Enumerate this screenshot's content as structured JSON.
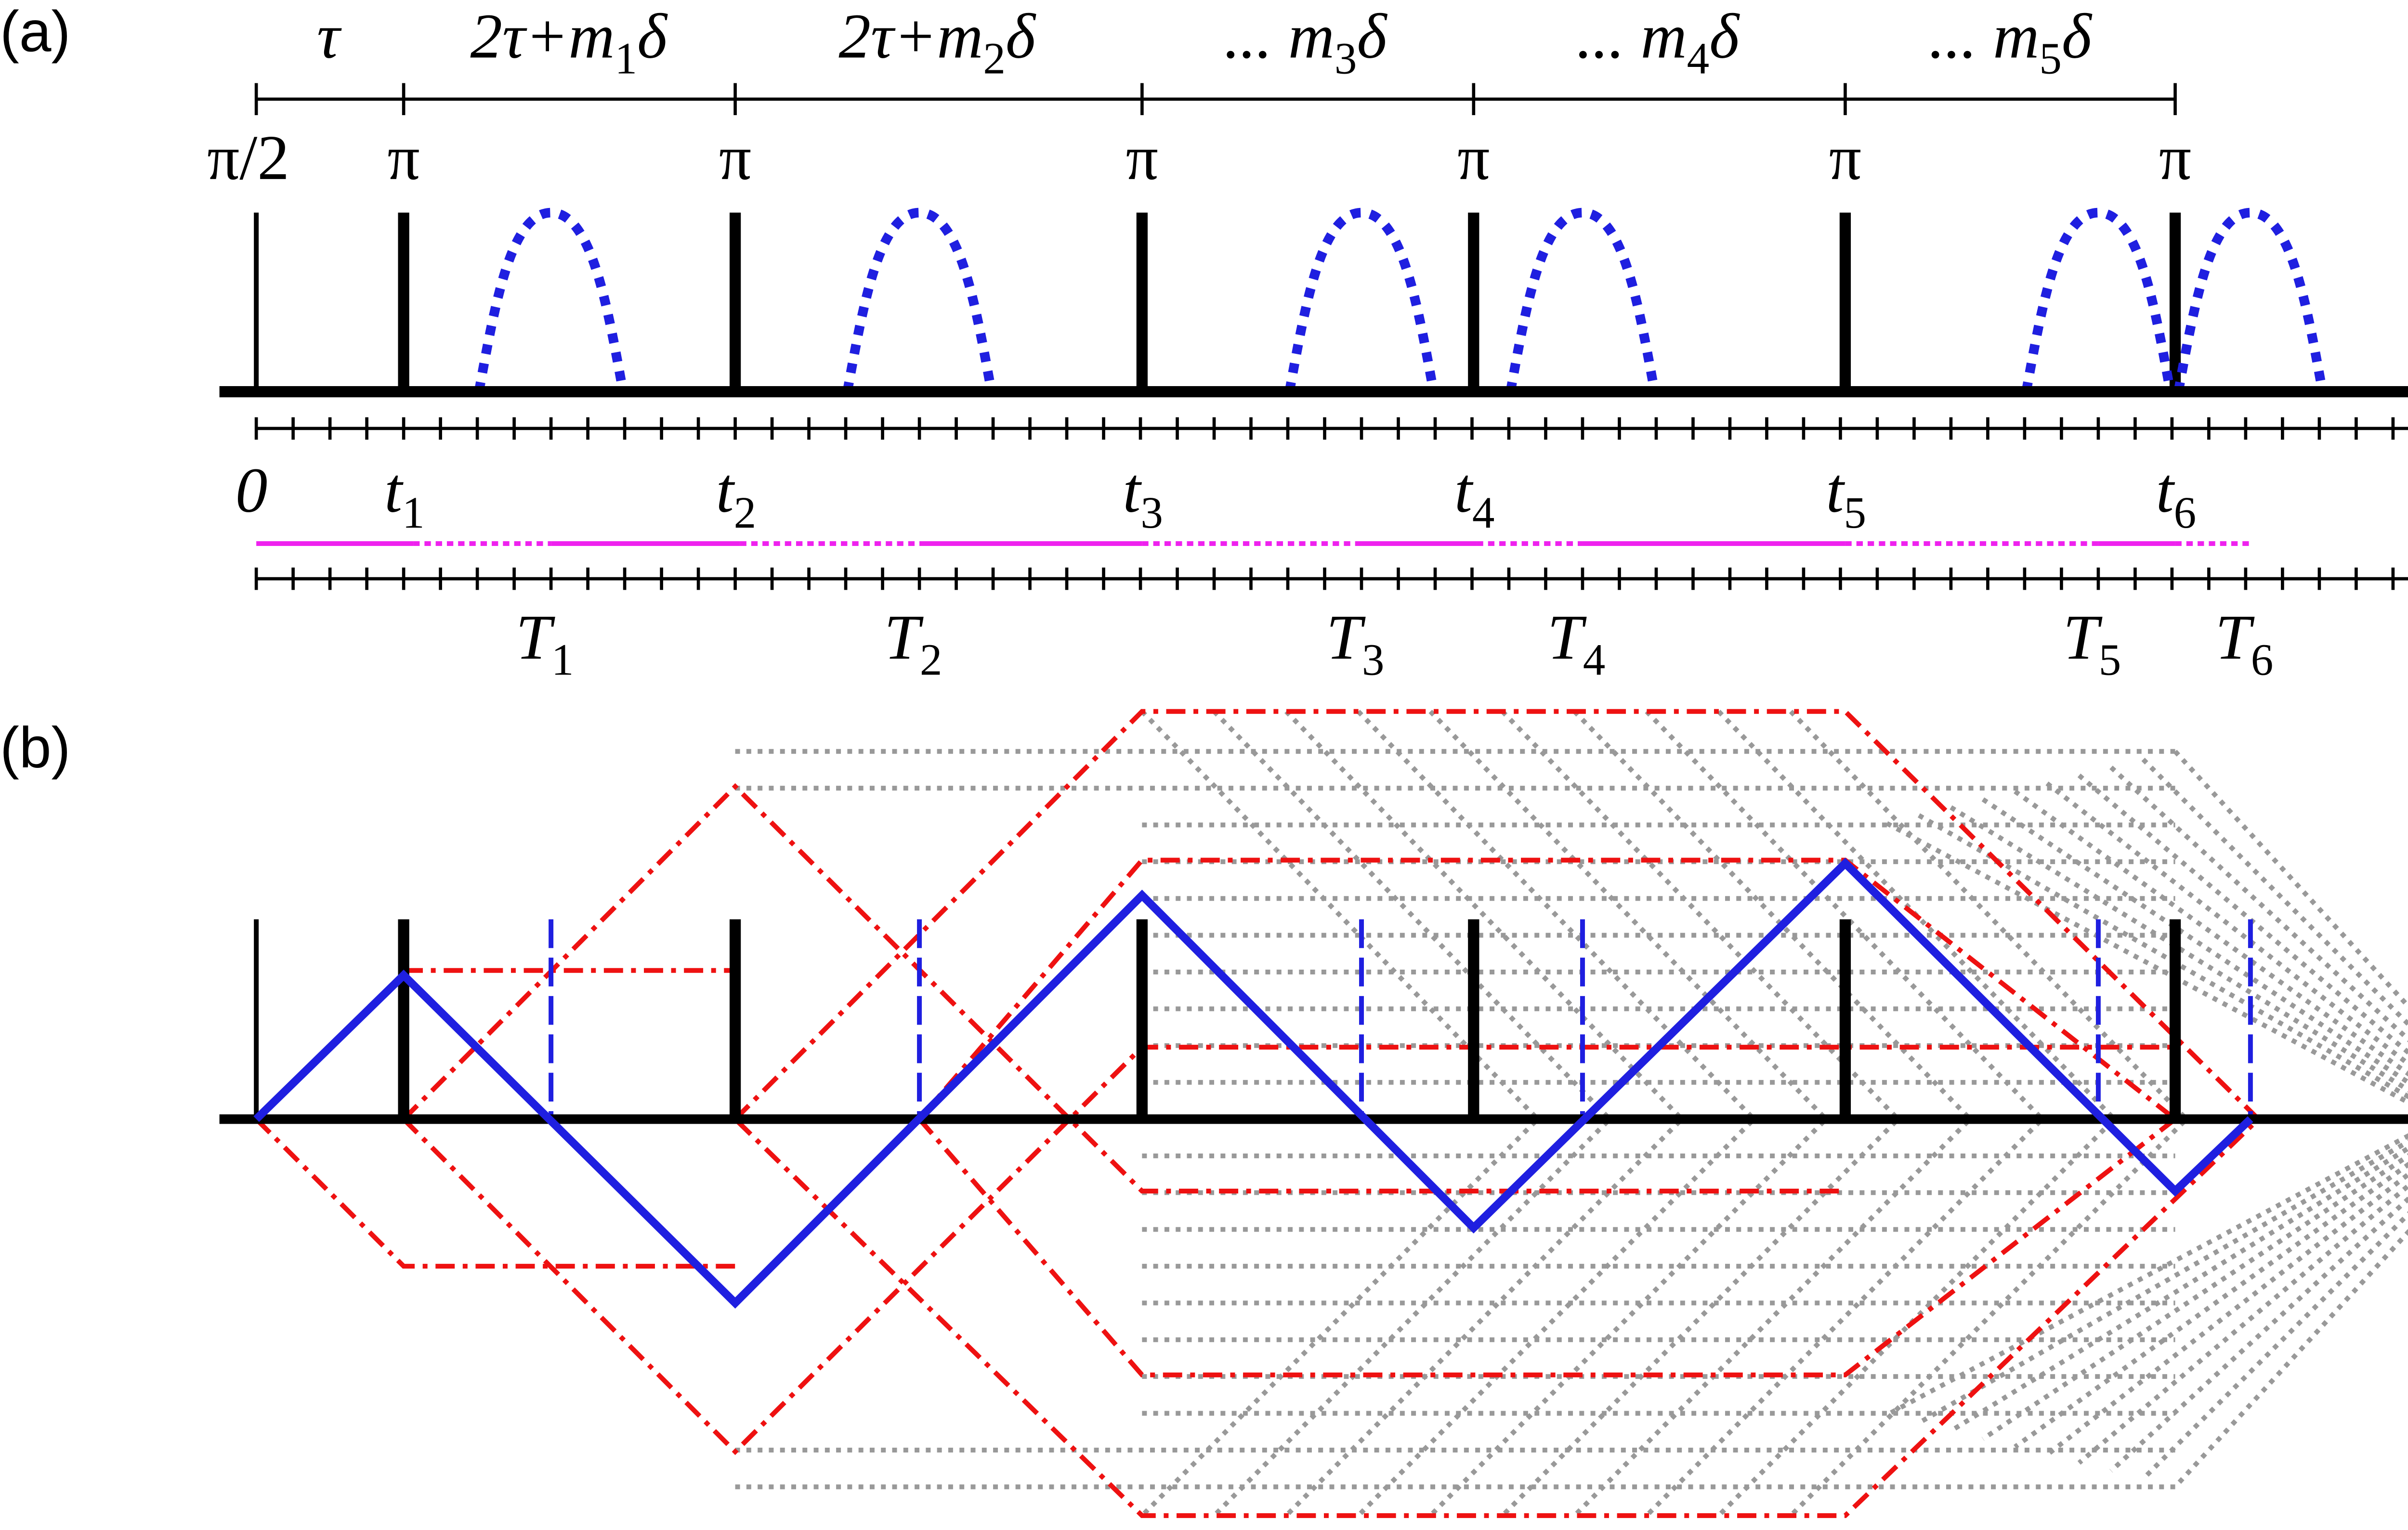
{
  "panel_a": {
    "label": "(a)",
    "intervals": [
      {
        "text": "τ"
      },
      {
        "text": "2τ+m",
        "sub": "1",
        "tail": "δ"
      },
      {
        "text": "2τ+m",
        "sub": "2",
        "tail": "δ"
      },
      {
        "text": "... m",
        "sub": "3",
        "tail": "δ"
      },
      {
        "text": "... m",
        "sub": "4",
        "tail": "δ"
      },
      {
        "text": "... m",
        "sub": "5",
        "tail": "δ"
      }
    ],
    "pulses": [
      "π/2",
      "π",
      "π",
      "π",
      "π",
      "π",
      "π"
    ],
    "ellipsis": "...",
    "times": [
      {
        "text": "0"
      },
      {
        "text": "t",
        "sub": "1"
      },
      {
        "text": "t",
        "sub": "2"
      },
      {
        "text": "t",
        "sub": "3"
      },
      {
        "text": "t",
        "sub": "4"
      },
      {
        "text": "t",
        "sub": "5"
      },
      {
        "text": "t",
        "sub": "6"
      }
    ],
    "periods": [
      {
        "text": "T",
        "sub": "1"
      },
      {
        "text": "T",
        "sub": "2"
      },
      {
        "text": "T",
        "sub": "3"
      },
      {
        "text": "T",
        "sub": "4"
      },
      {
        "text": "T",
        "sub": "5"
      },
      {
        "text": "T",
        "sub": "6"
      }
    ]
  },
  "panel_b": {
    "label": "(b)"
  }
}
